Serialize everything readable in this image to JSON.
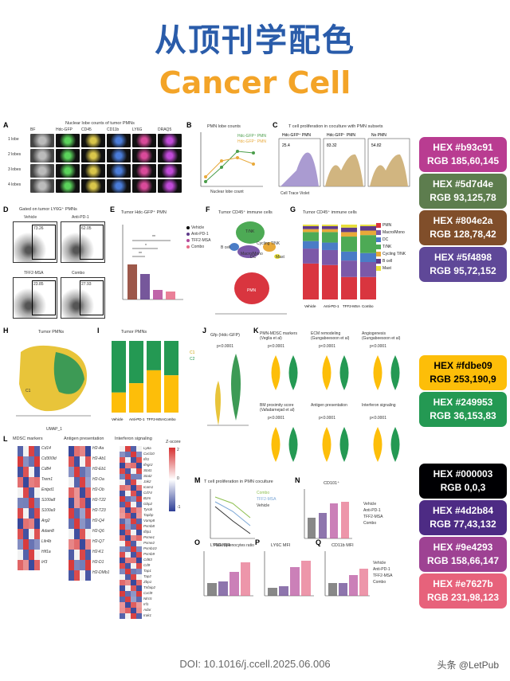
{
  "header": {
    "title_zh": "从顶刊学配色",
    "title_en": "Cancer Cell"
  },
  "panels": {
    "A": {
      "label": "A",
      "title": "Nuclear lobe counts of tumor PMNs",
      "columns": [
        "BF",
        "Hdc-GFP",
        "CD45",
        "CD11b",
        "LY6G",
        "DRAQ5"
      ],
      "rows": [
        "1 lobe",
        "2 lobes",
        "3 lobes",
        "4 lobes"
      ]
    },
    "B": {
      "label": "B",
      "title": "PMN lobe counts",
      "legend": [
        "Hdc-GFP⁺ PMN",
        "Hdc-GFP⁻ PMN"
      ],
      "xlabel": "Nuclear lobe count",
      "ylabel": "% in total subsets"
    },
    "C": {
      "label": "C",
      "title": "T cell proliferation in coculture with PMN subsets",
      "groups": [
        "Hdc-GFP⁺ PMN",
        "Hdc-GFP⁻ PMN",
        "No PMN"
      ],
      "values": [
        "25.4",
        "83.32",
        "54.82"
      ],
      "xlabel": "Cell Trace Violet"
    },
    "D": {
      "label": "D",
      "title": "Gated on tumor LY6G⁺ PMNs",
      "groups": [
        "Vehicle",
        "Anti-PD-1",
        "TFF2-MSA",
        "Combo"
      ],
      "values": [
        "73.26",
        "62.05",
        "23.85",
        "27.93"
      ],
      "xlabel": "Hdc-GFP",
      "ylabel": "FSCH"
    },
    "E": {
      "label": "E",
      "title": "Tumor Hdc-GFP⁺ PMN",
      "legend": [
        "Vehicle",
        "Anti-PD-1",
        "TFF2-MSA",
        "Combo"
      ],
      "ylabel": "% in CD45⁺",
      "sig": [
        "**",
        "*",
        "**",
        "ns"
      ]
    },
    "F": {
      "label": "F",
      "title": "Tumor CD45⁺ immune cells",
      "clusters": [
        "T/NK",
        "B cell",
        "Cycling T/NK",
        "Macro/Mono",
        "DC",
        "Mast",
        "PMN"
      ],
      "xlabel": "UMAP_1",
      "ylabel": "UMAP_2",
      "ticks": [
        "-10",
        "-5",
        "0",
        "5",
        "10"
      ]
    },
    "G": {
      "label": "G",
      "title": "Tumor CD45⁺ immune cells",
      "legend": [
        "PMN",
        "Macro/Mono",
        "DC",
        "T/NK",
        "Cycling T/NK",
        "B cell",
        "Mast"
      ],
      "groups": [
        "Vehicle",
        "Anti-PD-1",
        "TFF2-MSA",
        "Combo"
      ],
      "ylabel": "Percentage in CD45⁺"
    },
    "H": {
      "label": "H",
      "title": "Tumor PMNs",
      "xlabel": "UMAP_1",
      "ylabel": "UMAP_2",
      "clusters": [
        "C1",
        "C2"
      ]
    },
    "I": {
      "label": "I",
      "title": "Tumor PMNs",
      "legend": [
        "C1",
        "C2"
      ],
      "groups": [
        "Vehicle",
        "Anti-PD-1",
        "TFF2-MSA",
        "Combo"
      ],
      "ylabel": "Percentage in PMN"
    },
    "J": {
      "label": "J",
      "title": "Gfp (Hdc-GFP)",
      "p": "p<0.0001",
      "ylabel": "Expression Level",
      "groups": [
        "C1",
        "C2"
      ]
    },
    "K": {
      "label": "K",
      "titles": [
        "PMN-MDSC markers (Veglia et al)",
        "ECM remodeling (Gungabeesoon et al)",
        "Angiogenesis (Gungabeesoon et al)",
        "BM proximity score (Vafadarnejad et al)",
        "Antigen presentation",
        "Interferon signaling"
      ],
      "p": "p<0.0001",
      "ylabel": "Signature score",
      "groups": [
        "C1",
        "C2"
      ]
    },
    "L": {
      "label": "L",
      "heads": [
        "MDSC markers",
        "Antigen presentation",
        "Interferon signaling",
        "Z-score"
      ],
      "genes1": [
        "Cd14",
        "Cd300ld",
        "Cd84",
        "Trem1",
        "Entpd1",
        "S100a8",
        "S100a9",
        "Arg2",
        "Adam8",
        "Lilr4b",
        "Hif1a",
        "Irf3"
      ],
      "genes2": [
        "H2-Aa",
        "H2-Ab1",
        "H2-Eb1",
        "H2-Oa",
        "H2-Ob",
        "H2-T22",
        "H2-T23",
        "H2-Q4",
        "H2-Q6",
        "H2-Q7",
        "H2-K1",
        "H2-D1",
        "H2-DMb1"
      ],
      "genes3": [
        "Ly6a",
        "Cxcl10",
        "Ifit1",
        "Ifngr2",
        "Stat1",
        "Stat2",
        "Jak2",
        "Icam1",
        "Cd74",
        "B2m",
        "Gbp2",
        "Tyrob",
        "Tapbp",
        "Vamp8",
        "Psmb8",
        "Ifitp1",
        "Psme1",
        "Psme2",
        "Psmb10",
        "Psmb9",
        "Cd83",
        "Cd9",
        "Tap1",
        "Tap2",
        "Zbp1",
        "Tnfaip2",
        "Cxcl9",
        "Nlrc5",
        "Irf1",
        "Adar",
        "Irak1"
      ],
      "groups": [
        "Vehicle",
        "Anti-PD-1",
        "TFF2-MSA",
        "Combo"
      ],
      "zticks": [
        "2",
        "0",
        "-1"
      ]
    },
    "M": {
      "label": "M",
      "title": "T cell proliferation in PMN coculture",
      "legend": [
        "Combo",
        "TFF2-MSA",
        "Vehicle"
      ],
      "xlabel": "PMN:Splenocytes ratio",
      "ylabel": "% Proliferating T cells",
      "xticks": [
        "1:8",
        "1:4",
        "1:2"
      ]
    },
    "N": {
      "label": "N",
      "title": "CD101⁺",
      "legend": [
        "Vehicle",
        "Anti-PD-1",
        "TFF2-MSA",
        "Combo"
      ],
      "ylabel": "% in PMN-MDSCs"
    },
    "O": {
      "label": "O",
      "title": "LY6G MFI",
      "ylabel": "LY6G MFI"
    },
    "P": {
      "label": "P",
      "title": "LY6C MFI",
      "ylabel": "LY6C MFI"
    },
    "Q": {
      "label": "Q",
      "title": "CD11b MFI",
      "ylabel": "CD11b MFI",
      "legend": [
        "Vehicle",
        "Anti-PD-1",
        "TFF2-MSA",
        "Combo"
      ]
    }
  },
  "palette": [
    {
      "hex": "HEX #b93c91",
      "rgb": "RGB 185,60,145",
      "color": "#b93c91",
      "text": "#ffffff"
    },
    {
      "hex": "HEX #5d7d4e",
      "rgb": "RGB 93,125,78",
      "color": "#5d7d4e",
      "text": "#ffffff"
    },
    {
      "hex": "HEX #804e2a",
      "rgb": "RGB 128,78,42",
      "color": "#804e2a",
      "text": "#ffffff"
    },
    {
      "hex": "HEX #5f4898",
      "rgb": "RGB 95,72,152",
      "color": "#5f4898",
      "text": "#ffffff"
    },
    {
      "hex": "HEX #fdbe09",
      "rgb": "RGB 253,190,9",
      "color": "#fdbe09",
      "text": "#000000"
    },
    {
      "hex": "HEX #249953",
      "rgb": "RGB 36,153,83",
      "color": "#249953",
      "text": "#ffffff"
    },
    {
      "hex": "HEX #000003",
      "rgb": "RGB 0,0,3",
      "color": "#000003",
      "text": "#ffffff"
    },
    {
      "hex": "HEX #4d2b84",
      "rgb": "RGB 77,43,132",
      "color": "#4d2b84",
      "text": "#ffffff"
    },
    {
      "hex": "HEX #9e4293",
      "rgb": "RGB 158,66,147",
      "color": "#9e4293",
      "text": "#ffffff"
    },
    {
      "hex": "HEX #e7627b",
      "rgb": "RGB 231,98,123",
      "color": "#e7627b",
      "text": "#ffffff"
    }
  ],
  "footer": {
    "doi": "DOI: 10.1016/j.ccell.2025.06.006",
    "watermark": "头条 @LetPub"
  }
}
